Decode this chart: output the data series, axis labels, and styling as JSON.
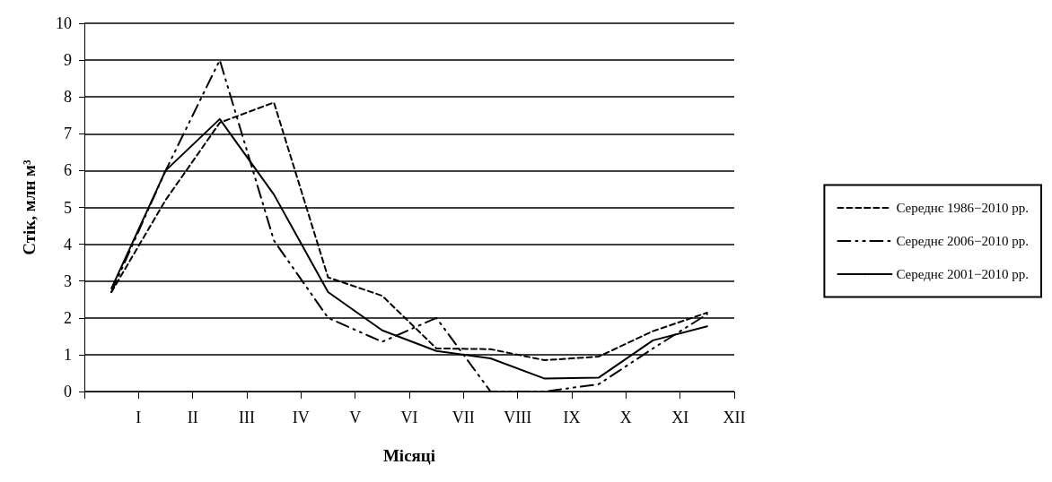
{
  "chart_data": {
    "type": "line",
    "xlabel": "Місяці",
    "ylabel": "Стік, млн м³",
    "categories": [
      null,
      null,
      "I",
      null,
      "II",
      null,
      "III",
      null,
      "IV",
      null,
      "V",
      null,
      "VI",
      null,
      "VII",
      null,
      "VIII",
      null,
      "IX",
      null,
      "X",
      null,
      "XI",
      null,
      "XII"
    ],
    "ylim": [
      0,
      10
    ],
    "yticks": [
      0,
      1,
      2,
      3,
      4,
      5,
      6,
      7,
      8,
      9,
      10
    ],
    "grid": "y",
    "legend": "right",
    "marker": "none",
    "series": [
      {
        "name": "Середнє 1986−2010 рр.",
        "color": "#000000",
        "line_style": "dashed",
        "values": [
          null,
          2.7,
          null,
          5.2,
          null,
          7.3,
          null,
          7.85,
          null,
          3.1,
          null,
          2.6,
          null,
          1.17,
          null,
          1.15,
          null,
          0.85,
          null,
          0.95,
          null,
          1.64,
          null,
          2.14,
          null
        ]
      },
      {
        "name": "Середнє 2006−2010 рр.",
        "color": "#000000",
        "line_style": "dashdot",
        "values": [
          null,
          2.7,
          null,
          6.0,
          null,
          9.0,
          null,
          4.1,
          null,
          2.0,
          null,
          1.35,
          null,
          2.0,
          null,
          0.0,
          null,
          0.0,
          null,
          0.2,
          null,
          1.17,
          null,
          2.1,
          null
        ]
      },
      {
        "name": "Середнє 2001−2010 рр.",
        "color": "#000000",
        "line_style": "solid",
        "values": [
          null,
          2.8,
          null,
          6.0,
          null,
          7.4,
          null,
          5.35,
          null,
          2.7,
          null,
          1.66,
          null,
          1.1,
          null,
          0.9,
          null,
          0.35,
          null,
          0.38,
          null,
          1.39,
          null,
          1.77,
          null
        ]
      }
    ]
  }
}
